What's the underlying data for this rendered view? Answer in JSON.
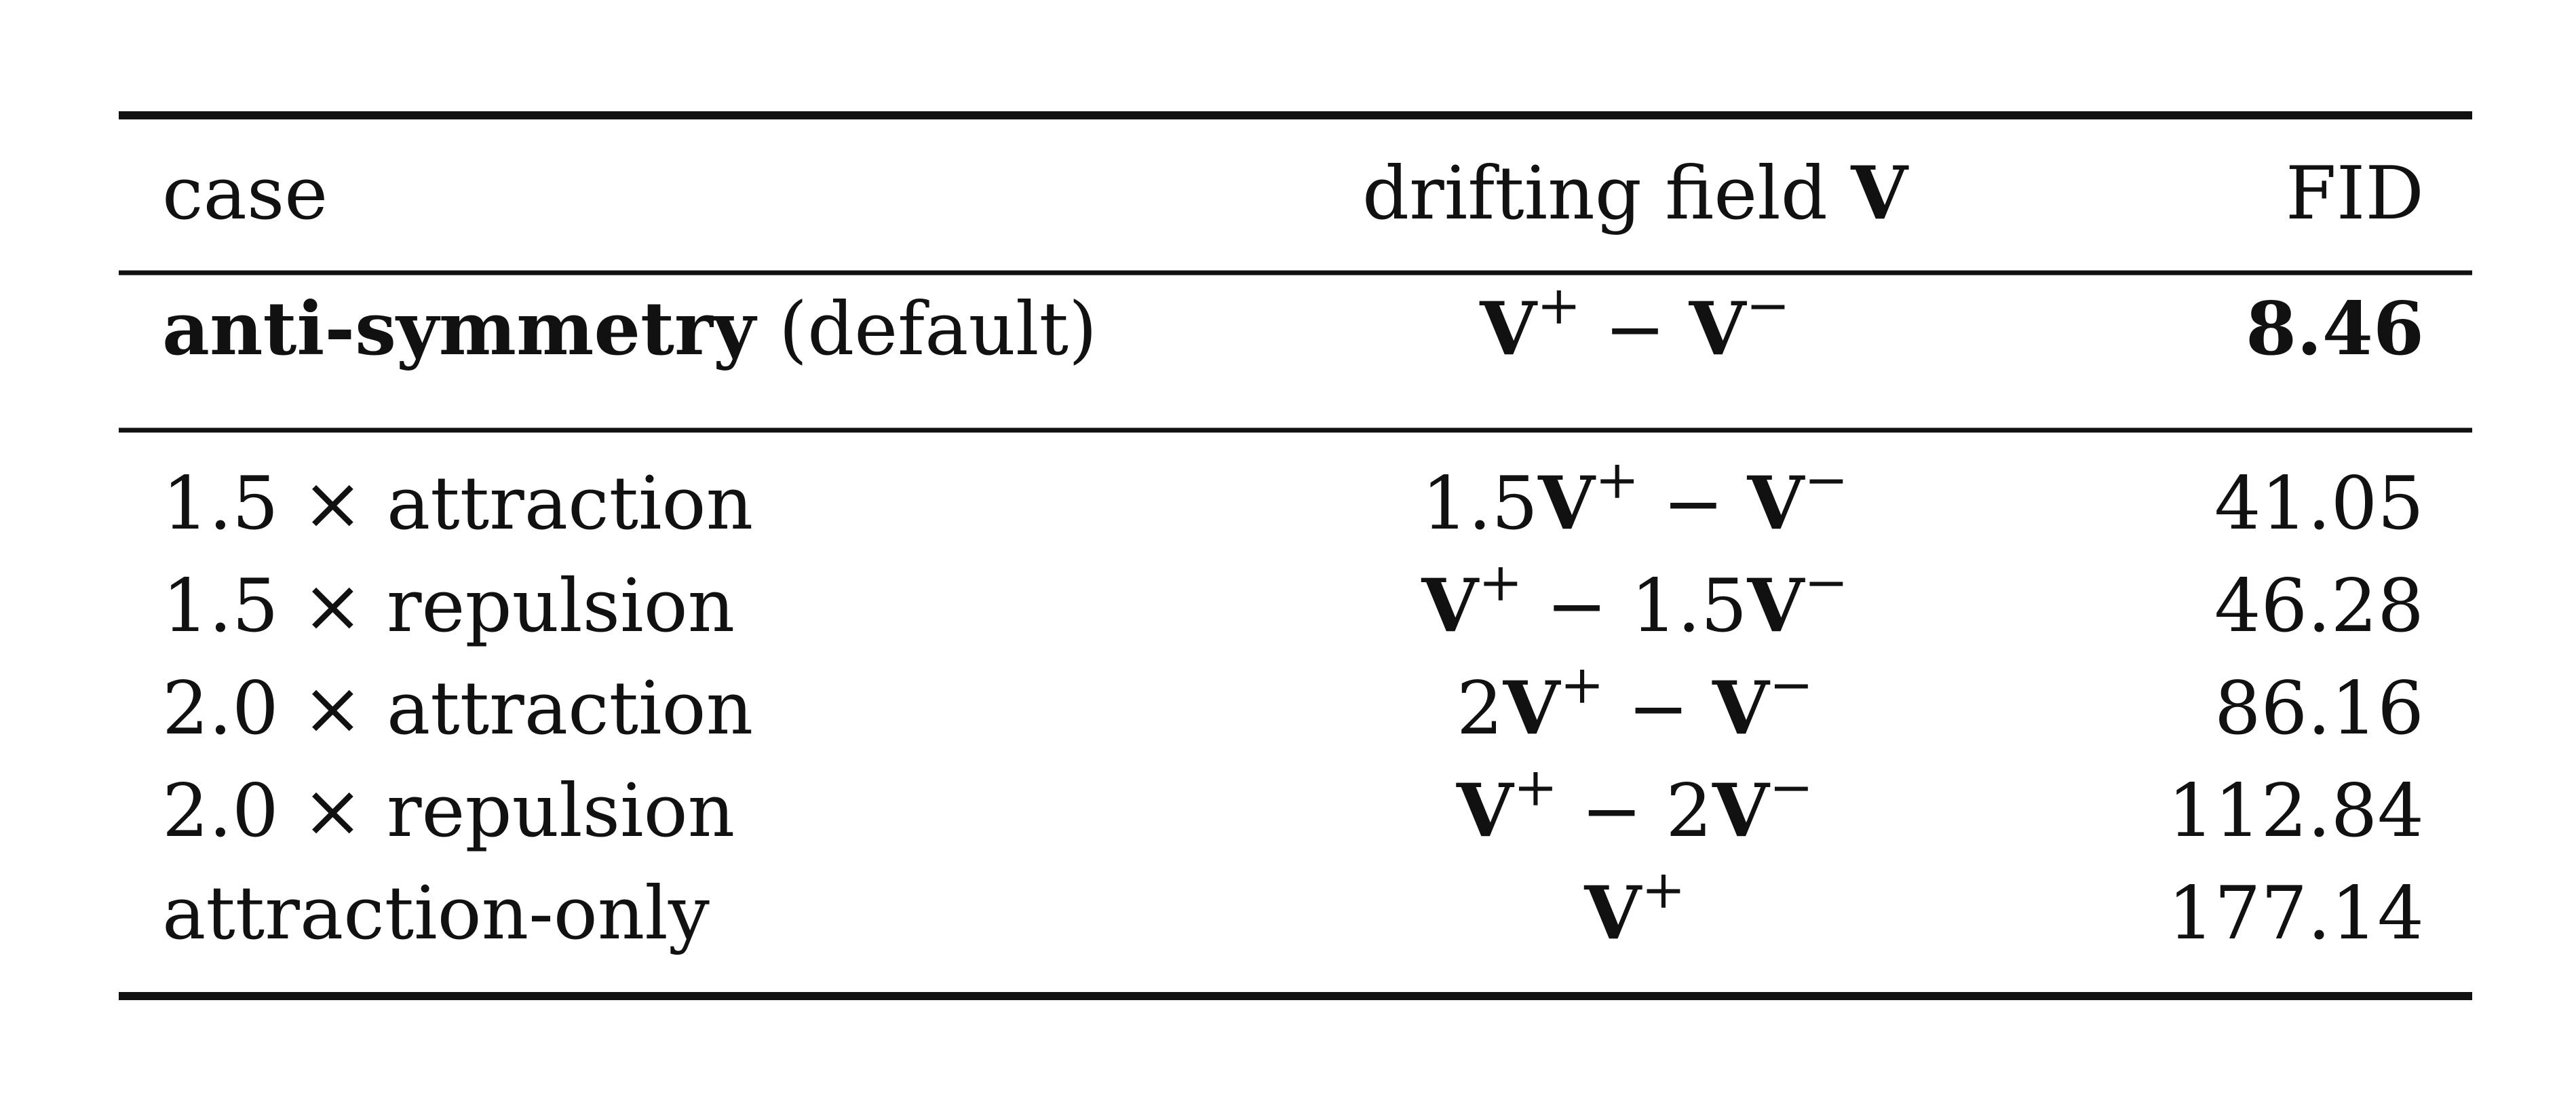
{
  "table": {
    "header": [
      [
        {
          "text": "case"
        }
      ],
      [
        {
          "text": "drifting field "
        },
        {
          "text": "V",
          "bold": true
        }
      ],
      [
        {
          "text": "FID"
        }
      ]
    ],
    "rows": [
      [
        [
          {
            "text": "anti-symmetry",
            "bold": true
          },
          {
            "text": " (default)"
          }
        ],
        [
          {
            "text": "V",
            "bold": true
          },
          {
            "text": "+",
            "sup": true
          },
          {
            "text": " − "
          },
          {
            "text": "V",
            "bold": true
          },
          {
            "text": "−",
            "sup": true
          }
        ],
        [
          {
            "text": "8.46",
            "bold": true
          }
        ]
      ],
      [
        [
          {
            "text": "1.5 × attraction"
          }
        ],
        [
          {
            "text": "1.5"
          },
          {
            "text": "V",
            "bold": true
          },
          {
            "text": "+",
            "sup": true
          },
          {
            "text": " − "
          },
          {
            "text": "V",
            "bold": true
          },
          {
            "text": "−",
            "sup": true
          }
        ],
        [
          {
            "text": "41.05"
          }
        ]
      ],
      [
        [
          {
            "text": "1.5 × repulsion"
          }
        ],
        [
          {
            "text": "V",
            "bold": true
          },
          {
            "text": "+",
            "sup": true
          },
          {
            "text": " − 1.5"
          },
          {
            "text": "V",
            "bold": true
          },
          {
            "text": "−",
            "sup": true
          }
        ],
        [
          {
            "text": "46.28"
          }
        ]
      ],
      [
        [
          {
            "text": "2.0 × attraction"
          }
        ],
        [
          {
            "text": "2"
          },
          {
            "text": "V",
            "bold": true
          },
          {
            "text": "+",
            "sup": true
          },
          {
            "text": " − "
          },
          {
            "text": "V",
            "bold": true
          },
          {
            "text": "−",
            "sup": true
          }
        ],
        [
          {
            "text": "86.16"
          }
        ]
      ],
      [
        [
          {
            "text": "2.0 × repulsion"
          }
        ],
        [
          {
            "text": "V",
            "bold": true
          },
          {
            "text": "+",
            "sup": true
          },
          {
            "text": " − 2"
          },
          {
            "text": "V",
            "bold": true
          },
          {
            "text": "−",
            "sup": true
          }
        ],
        [
          {
            "text": "112.84"
          }
        ]
      ],
      [
        [
          {
            "text": "attraction-only"
          }
        ],
        [
          {
            "text": "V",
            "bold": true
          },
          {
            "text": "+",
            "sup": true
          }
        ],
        [
          {
            "text": "177.14"
          }
        ]
      ]
    ]
  }
}
